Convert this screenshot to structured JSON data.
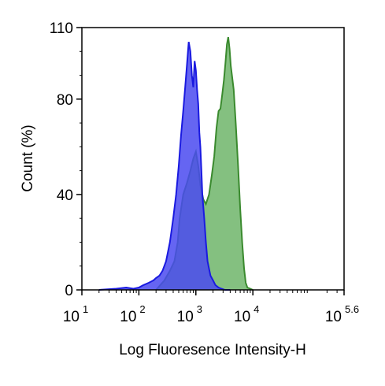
{
  "chart_data": {
    "type": "area",
    "xlabel": "Log Fluoresence Intensity-H",
    "ylabel": "Count  (%)",
    "x_scale": "log10",
    "xlim": [
      10,
      398107
    ],
    "ylim": [
      0,
      110
    ],
    "x_ticks": [
      {
        "value": 10,
        "base": "10",
        "exp": "1"
      },
      {
        "value": 100,
        "base": "10",
        "exp": "2"
      },
      {
        "value": 1000,
        "base": "10",
        "exp": "3"
      },
      {
        "value": 10000,
        "base": "10",
        "exp": "4"
      },
      {
        "value": 398107,
        "base": "10",
        "exp": "5.6"
      }
    ],
    "y_ticks": [
      {
        "value": 0,
        "label": "0"
      },
      {
        "value": 40,
        "label": "40"
      },
      {
        "value": 80,
        "label": "80"
      },
      {
        "value": 110,
        "label": "110"
      }
    ],
    "grid": false,
    "series": [
      {
        "color": "#3a8a2e",
        "fill": "#6fb56a",
        "x": [
          200,
          280,
          350,
          420,
          480,
          520,
          600,
          700,
          800,
          900,
          1000,
          1100,
          1200,
          1350,
          1500,
          1700,
          1900,
          2100,
          2300,
          2500,
          2700,
          2900,
          3100,
          3300,
          3500,
          3700,
          3900,
          4100,
          4300,
          4600,
          5000,
          5500,
          6000,
          6500,
          7000,
          7500,
          8000,
          9000,
          10000
        ],
        "y": [
          0,
          4,
          8,
          12,
          20,
          30,
          40,
          45,
          50,
          55,
          58,
          52,
          44,
          38,
          36,
          40,
          48,
          56,
          68,
          75,
          76,
          82,
          88,
          95,
          103,
          106,
          101,
          94,
          90,
          84,
          70,
          52,
          34,
          20,
          9,
          3,
          1,
          0.5,
          0
        ]
      },
      {
        "color": "#1a1ae0",
        "fill": "#4a4af0",
        "x": [
          20,
          40,
          60,
          80,
          100,
          120,
          150,
          180,
          200,
          230,
          260,
          300,
          350,
          400,
          450,
          500,
          550,
          600,
          650,
          700,
          750,
          800,
          850,
          900,
          950,
          1000,
          1050,
          1100,
          1150,
          1200,
          1250,
          1300,
          1400,
          1500,
          1600,
          1800,
          2000,
          2200,
          2500,
          2800,
          3200,
          4000
        ],
        "y": [
          0,
          0.5,
          1,
          0.5,
          1,
          2,
          3,
          4,
          5,
          6,
          8,
          12,
          20,
          30,
          40,
          52,
          65,
          75,
          85,
          95,
          104,
          100,
          90,
          85,
          96,
          92,
          84,
          78,
          66,
          60,
          50,
          40,
          30,
          20,
          12,
          6,
          4,
          2,
          1,
          0.5,
          0,
          0
        ]
      }
    ]
  }
}
